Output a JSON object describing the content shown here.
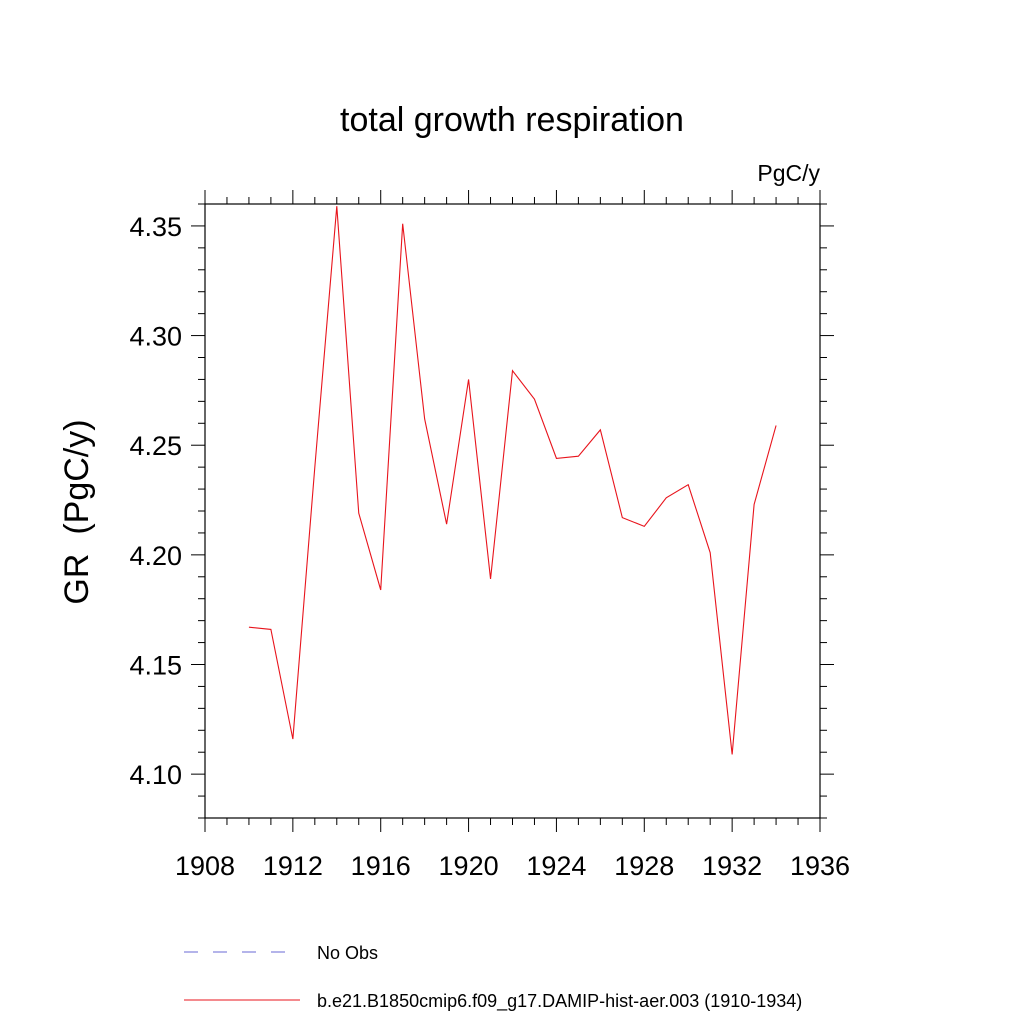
{
  "chart_data": {
    "type": "line",
    "title": "total growth respiration",
    "units_label": "PgC/y",
    "ylabel": "GR  (PgC/y)",
    "xlabel": "",
    "xlim": [
      1908,
      1936
    ],
    "ylim": [
      4.08,
      4.36
    ],
    "x_ticks": [
      1908,
      1912,
      1916,
      1920,
      1924,
      1928,
      1932,
      1936
    ],
    "y_ticks": [
      4.1,
      4.15,
      4.2,
      4.25,
      4.3,
      4.35
    ],
    "x_tick_labels": [
      "1908",
      "1912",
      "1916",
      "1920",
      "1924",
      "1928",
      "1932",
      "1936"
    ],
    "y_tick_labels": [
      "4.10",
      "4.15",
      "4.20",
      "4.25",
      "4.30",
      "4.35"
    ],
    "grid": false,
    "legend_position": "bottom",
    "series": [
      {
        "name": "b.e21.B1850cmip6.f09_g17.DAMIP-hist-aer.003 (1910-1934)",
        "color": "#e8141c",
        "style": "solid",
        "x": [
          1910,
          1911,
          1912,
          1913,
          1914,
          1915,
          1916,
          1917,
          1918,
          1919,
          1920,
          1921,
          1922,
          1923,
          1924,
          1925,
          1926,
          1927,
          1928,
          1929,
          1930,
          1931,
          1932,
          1933,
          1934
        ],
        "values": [
          4.167,
          4.166,
          4.116,
          4.24,
          4.359,
          4.219,
          4.184,
          4.351,
          4.262,
          4.214,
          4.28,
          4.189,
          4.284,
          4.271,
          4.244,
          4.245,
          4.257,
          4.217,
          4.213,
          4.226,
          4.232,
          4.201,
          4.109,
          4.223,
          4.259
        ]
      },
      {
        "name": "No Obs",
        "color": "#6a6ad4",
        "style": "dashed",
        "x": [],
        "values": []
      }
    ]
  }
}
